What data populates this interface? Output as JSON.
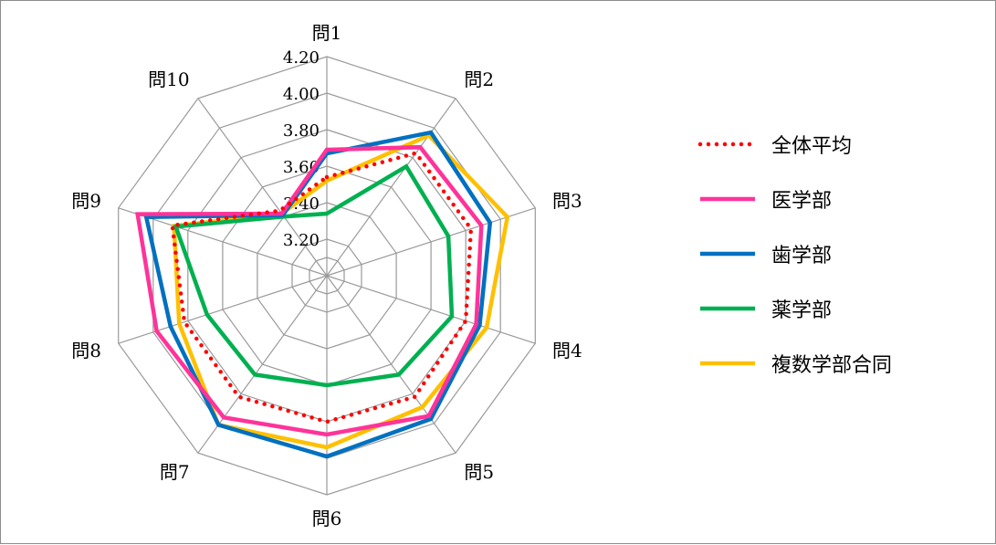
{
  "chart_data": {
    "type": "radar",
    "categories": [
      "問1",
      "問2",
      "問3",
      "問4",
      "問5",
      "問6",
      "問7",
      "問8",
      "問9",
      "問10"
    ],
    "r_ticks": [
      "3.20",
      "3.40",
      "3.60",
      "3.80",
      "4.00",
      "4.20"
    ],
    "rlim": [
      3.0,
      4.2
    ],
    "grid": true,
    "legend_position": "right",
    "series": [
      {
        "name": "全体平均",
        "color": "#ff0000",
        "style": "dotted",
        "values": [
          3.54,
          3.83,
          3.83,
          3.8,
          3.82,
          3.8,
          3.82,
          3.82,
          3.89,
          3.44
        ]
      },
      {
        "name": "医学部",
        "color": "#ff3399",
        "style": "solid",
        "values": [
          3.69,
          3.87,
          3.89,
          3.86,
          3.95,
          3.87,
          3.96,
          3.98,
          4.09,
          3.42
        ]
      },
      {
        "name": "歯学部",
        "color": "#0070c0",
        "style": "solid",
        "values": [
          3.67,
          3.97,
          3.94,
          3.88,
          3.97,
          3.99,
          4.01,
          3.9,
          4.04,
          3.41
        ]
      },
      {
        "name": "薬学部",
        "color": "#00b050",
        "style": "solid",
        "values": [
          3.34,
          3.74,
          3.7,
          3.72,
          3.67,
          3.6,
          3.67,
          3.69,
          3.87,
          3.4
        ]
      },
      {
        "name": "複数学部合同",
        "color": "#ffc000",
        "style": "solid",
        "values": [
          3.52,
          3.95,
          4.04,
          3.92,
          3.89,
          3.94,
          4.01,
          3.85,
          3.88,
          3.42
        ]
      }
    ]
  }
}
